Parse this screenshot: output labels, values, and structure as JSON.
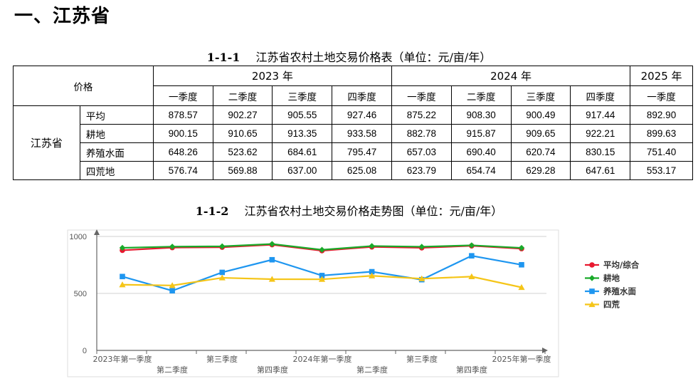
{
  "heading": "一、江苏省",
  "table1": {
    "number": "1-1-1",
    "title": "江苏省农村土地交易价格表（单位：元/亩/年）",
    "corner_label": "价格",
    "years": [
      {
        "label": "2023 年"
      },
      {
        "label": "2024 年"
      },
      {
        "label": "2025 年"
      }
    ],
    "quarters": [
      "一季度",
      "二季度",
      "三季度",
      "四季度",
      "一季度",
      "二季度",
      "三季度",
      "四季度",
      "一季度"
    ],
    "province": "江苏省",
    "rows": [
      {
        "name": "平均",
        "values": [
          "878.57",
          "902.27",
          "905.55",
          "927.46",
          "875.22",
          "908.30",
          "900.49",
          "917.44",
          "892.90"
        ]
      },
      {
        "name": "耕地",
        "values": [
          "900.15",
          "910.65",
          "913.35",
          "933.58",
          "882.78",
          "915.87",
          "909.65",
          "922.21",
          "899.63"
        ]
      },
      {
        "name": "养殖水面",
        "values": [
          "648.26",
          "523.62",
          "684.61",
          "795.47",
          "657.03",
          "690.40",
          "620.74",
          "830.15",
          "751.40"
        ]
      },
      {
        "name": "四荒地",
        "values": [
          "576.74",
          "569.88",
          "637.00",
          "625.08",
          "623.79",
          "654.74",
          "629.28",
          "647.61",
          "553.17"
        ]
      }
    ]
  },
  "chart_title": {
    "number": "1-1-2",
    "title": "江苏省农村土地交易价格走势图（单位：元/亩/年）"
  },
  "chart_data": {
    "type": "line",
    "title": "",
    "xlabel": "",
    "ylabel": "",
    "ylim": [
      0,
      1000
    ],
    "yticks": [
      "0",
      "500",
      "1000"
    ],
    "grid": true,
    "legend_position": "right",
    "categories": [
      "2023年第一季度",
      "第二季度",
      "第三季度",
      "第四季度",
      "2024年第一季度",
      "第二季度",
      "第三季度",
      "第四季度",
      "2025年第一季度"
    ],
    "category_labels": [
      "2023年第一季度",
      "第二季度",
      "第三季度",
      "第四季度",
      "2024年第一季度",
      "第二季度",
      "第三季度",
      "第四季度",
      "2025年第一季度"
    ],
    "series": [
      {
        "name": "平均/综合",
        "color": "#e8182f",
        "marker": "circle",
        "values": [
          878.57,
          902.27,
          905.55,
          927.46,
          875.22,
          908.3,
          900.49,
          917.44,
          892.9
        ]
      },
      {
        "name": "耕地",
        "color": "#1aaa2a",
        "marker": "diamond",
        "values": [
          900.15,
          910.65,
          913.35,
          933.58,
          882.78,
          915.87,
          909.65,
          922.21,
          899.63
        ]
      },
      {
        "name": "养殖水面",
        "color": "#1e96f0",
        "marker": "square",
        "values": [
          648.26,
          523.62,
          684.61,
          795.47,
          657.03,
          690.4,
          620.74,
          830.15,
          751.4
        ]
      },
      {
        "name": "四荒",
        "color": "#f5c518",
        "marker": "triangle",
        "values": [
          576.74,
          569.88,
          637.0,
          625.08,
          623.79,
          654.74,
          629.28,
          647.61,
          553.17
        ]
      }
    ]
  }
}
